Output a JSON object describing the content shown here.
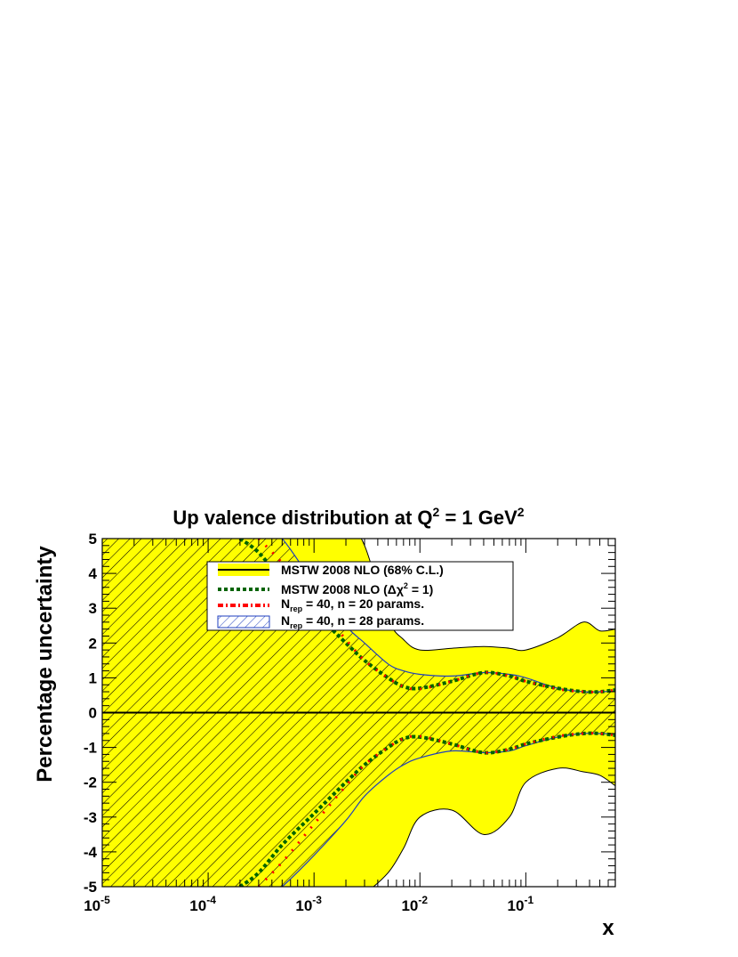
{
  "chart_data": {
    "type": "line",
    "title": "Up valence distribution at Q",
    "title_sup_1": "2",
    "title_mid": " = 1 GeV",
    "title_sup_2": "2",
    "xlabel": "x",
    "ylabel": "Percentage uncertainty",
    "x_scale": "log",
    "xlim": [
      1e-05,
      0.7
    ],
    "ylim": [
      -5,
      5
    ],
    "x_tick_labels": [
      {
        "base": "10",
        "exp": "-5",
        "value": 1e-05
      },
      {
        "base": "10",
        "exp": "-4",
        "value": 0.0001
      },
      {
        "base": "10",
        "exp": "-3",
        "value": 0.001
      },
      {
        "base": "10",
        "exp": "-2",
        "value": 0.01
      },
      {
        "base": "10",
        "exp": "-1",
        "value": 0.1
      }
    ],
    "y_ticks": [
      -5,
      -4,
      -3,
      -2,
      -1,
      0,
      1,
      2,
      3,
      4,
      5
    ],
    "grid": false,
    "legend_position": "top-center",
    "colors": {
      "band_fill": "#ffff00",
      "band_edge": "#000000",
      "dchi2_line": "#006400",
      "nrep20_line": "#ff0000",
      "hatch": "#000000",
      "hatch_edge": "#1f3fbf",
      "zero_line": "#000000"
    },
    "legend": [
      {
        "text": "MSTW 2008 NLO (68% C.L.)",
        "style": "band"
      },
      {
        "text": "MSTW 2008 NLO (Δχ",
        "sup": "2",
        "tail": " = 1)",
        "style": "dotted-green"
      },
      {
        "text": "N",
        "sub": "rep",
        "tail": " = 40, n = 20 params.",
        "style": "dashdot-red"
      },
      {
        "text": "N",
        "sub": "rep",
        "tail": " = 40, n = 28 params.",
        "style": "hatched-blue"
      }
    ],
    "series": [
      {
        "name": "MSTW 2008 NLO (68% C.L.)",
        "x": [
          1e-05,
          0.0001,
          0.0003,
          0.001,
          0.002,
          0.003,
          0.005,
          0.007,
          0.01,
          0.02,
          0.04,
          0.07,
          0.1,
          0.2,
          0.35,
          0.5,
          0.7
        ],
        "upper": [
          5.5,
          5.5,
          5.5,
          5.5,
          5.5,
          4.8,
          2.7,
          2.1,
          1.8,
          1.85,
          1.9,
          1.85,
          1.8,
          2.15,
          2.6,
          2.35,
          2.4
        ],
        "lower": [
          -5.5,
          -5.5,
          -5.5,
          -5.5,
          -5.5,
          -5.2,
          -4.6,
          -3.9,
          -3.0,
          -2.8,
          -3.5,
          -3.0,
          -2.0,
          -1.6,
          -1.7,
          -1.8,
          -2.1
        ]
      },
      {
        "name": "MSTW 2008 NLO (Δχ² = 1)",
        "x": [
          0.0002,
          0.0003,
          0.0005,
          0.001,
          0.002,
          0.003,
          0.005,
          0.007,
          0.01,
          0.02,
          0.04,
          0.07,
          0.1,
          0.2,
          0.35,
          0.5,
          0.7
        ],
        "upper": [
          5.0,
          4.6,
          3.8,
          2.9,
          2.0,
          1.5,
          1.0,
          0.75,
          0.7,
          0.9,
          1.15,
          1.05,
          0.9,
          0.7,
          0.6,
          0.6,
          0.65
        ],
        "lower": [
          -5.0,
          -4.6,
          -3.8,
          -2.9,
          -2.0,
          -1.5,
          -1.0,
          -0.75,
          -0.7,
          -0.9,
          -1.15,
          -1.05,
          -0.9,
          -0.7,
          -0.6,
          -0.6,
          -0.65
        ]
      },
      {
        "name": "N_rep = 40, n = 20 params.",
        "x": [
          0.0003,
          0.0005,
          0.001,
          0.002,
          0.003,
          0.005,
          0.007,
          0.01,
          0.02,
          0.04,
          0.07,
          0.1,
          0.2,
          0.35,
          0.5,
          0.7
        ],
        "upper": [
          5.0,
          4.3,
          3.2,
          2.1,
          1.5,
          1.0,
          0.75,
          0.68,
          0.9,
          1.15,
          1.05,
          0.9,
          0.68,
          0.6,
          0.6,
          0.65
        ],
        "lower": [
          -5.0,
          -4.3,
          -3.2,
          -2.1,
          -1.5,
          -1.0,
          -0.75,
          -0.68,
          -0.9,
          -1.15,
          -1.05,
          -0.9,
          -0.68,
          -0.6,
          -0.6,
          -0.65
        ]
      },
      {
        "name": "N_rep = 40, n = 28 params.",
        "x": [
          1e-05,
          0.0001,
          0.0002,
          0.0003,
          0.0005,
          0.001,
          0.002,
          0.003,
          0.005,
          0.007,
          0.01,
          0.02,
          0.04,
          0.07,
          0.1,
          0.2,
          0.35,
          0.5,
          0.7
        ],
        "upper": [
          5.5,
          5.5,
          5.5,
          5.5,
          5.0,
          3.7,
          2.5,
          2.0,
          1.4,
          1.2,
          1.1,
          1.05,
          1.15,
          1.1,
          1.0,
          0.7,
          0.6,
          0.6,
          0.62
        ],
        "lower": [
          -5.5,
          -5.5,
          -5.5,
          -5.5,
          -5.0,
          -4.1,
          -3.1,
          -2.4,
          -1.8,
          -1.5,
          -1.3,
          -1.1,
          -1.15,
          -1.1,
          -0.95,
          -0.7,
          -0.6,
          -0.6,
          -0.62
        ]
      }
    ]
  }
}
